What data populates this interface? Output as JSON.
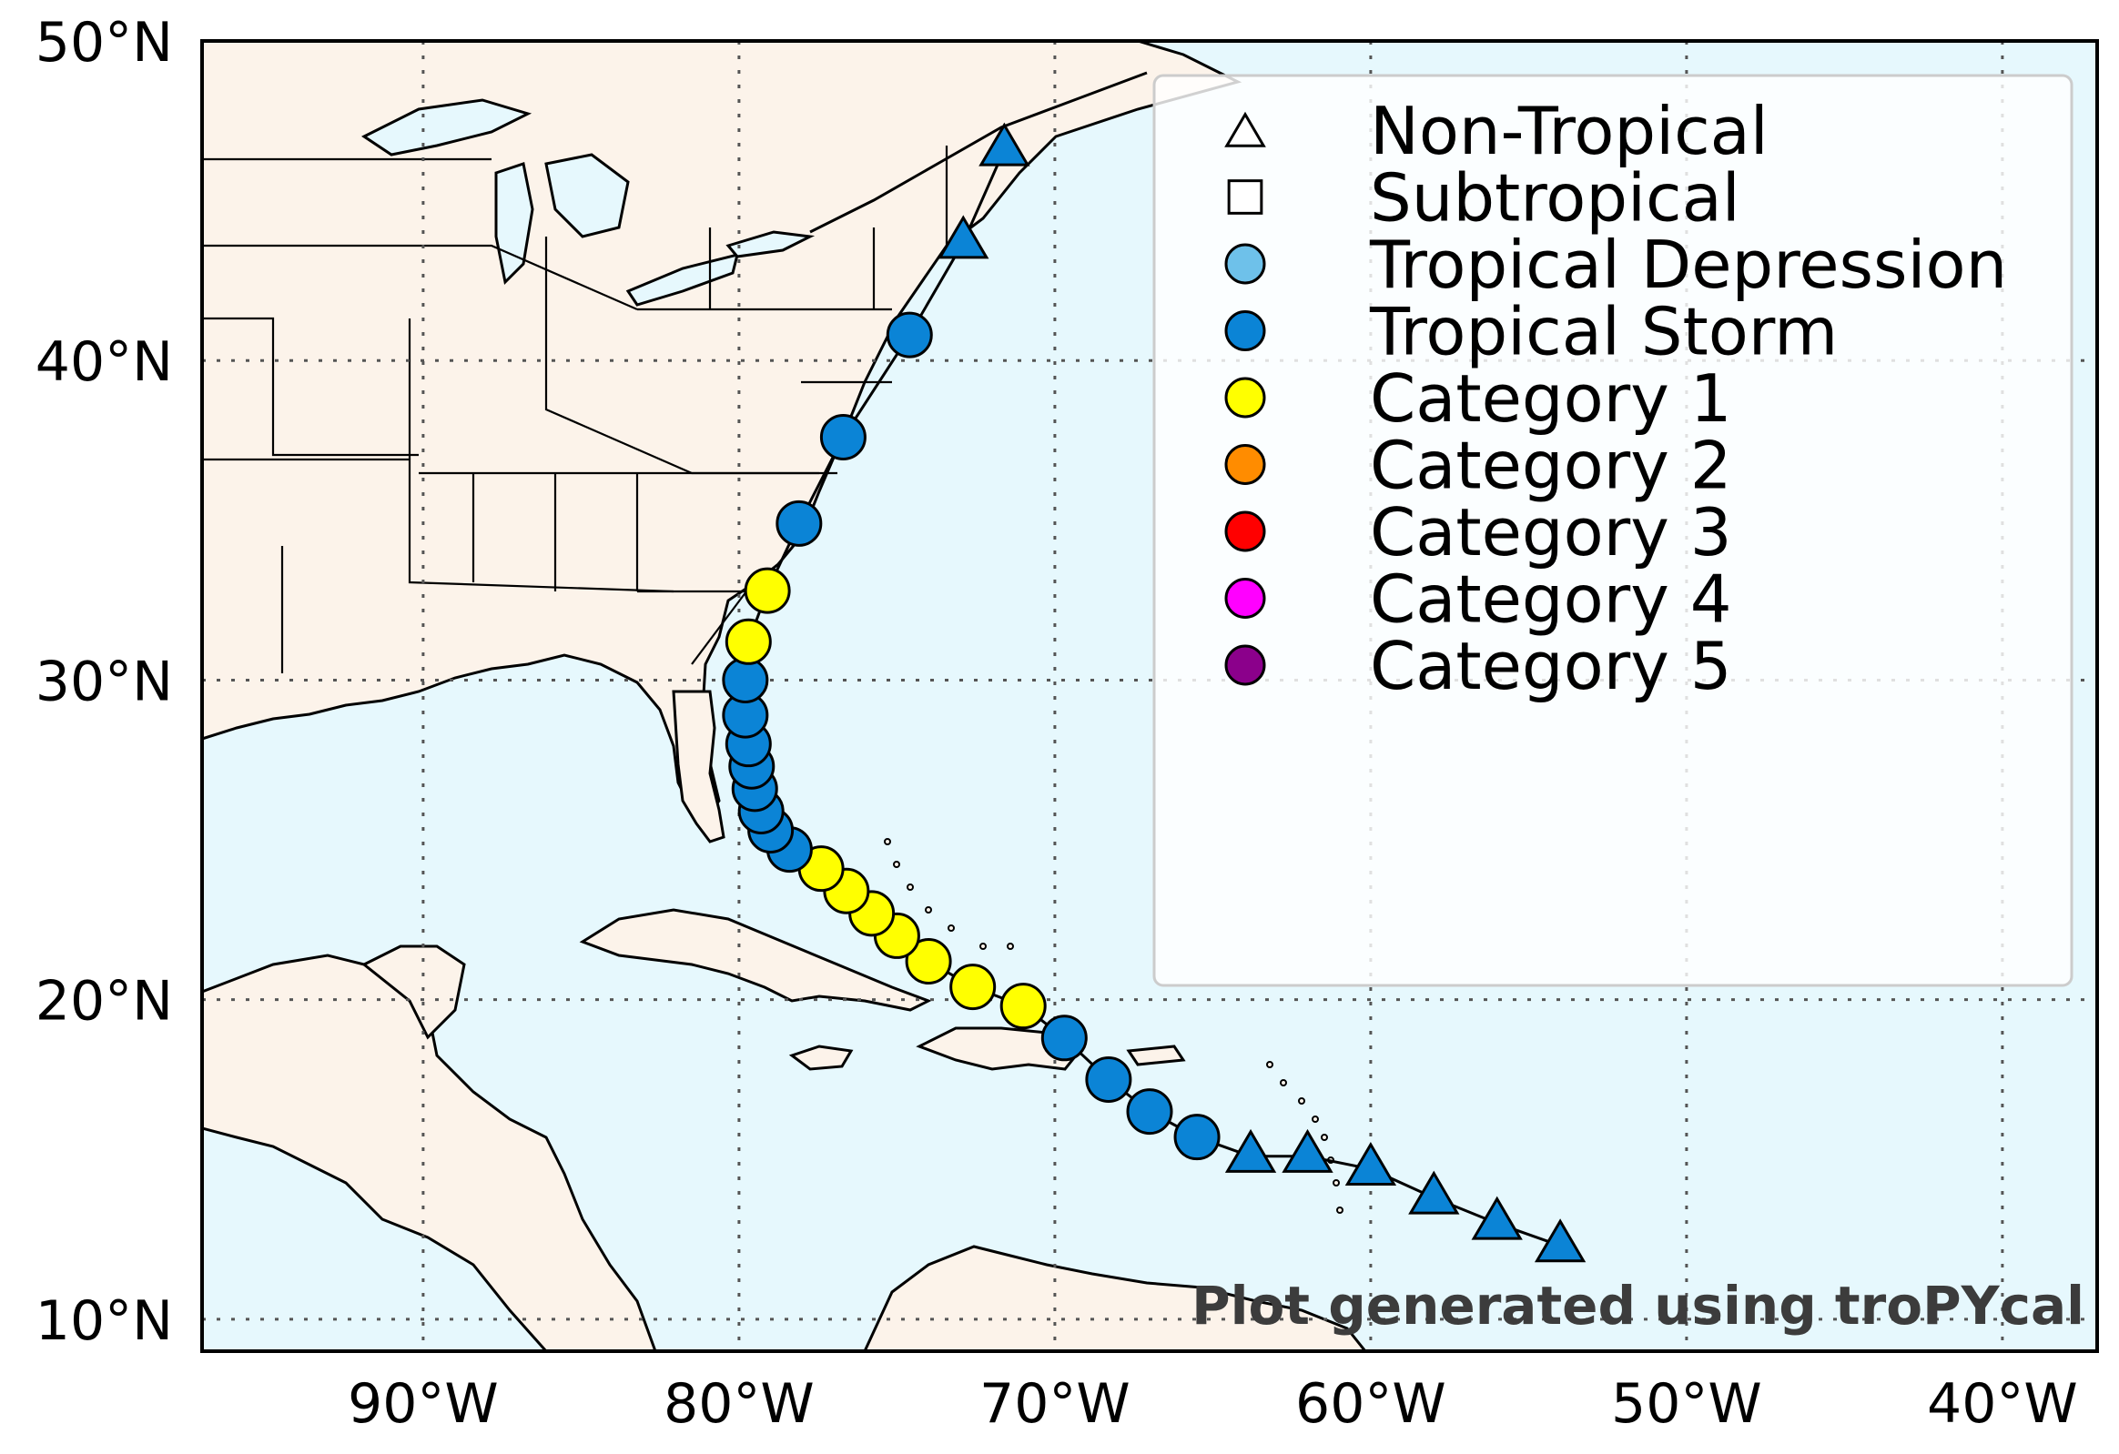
{
  "chart_data": {
    "type": "map-track",
    "lon_range": [
      -97,
      -37
    ],
    "lat_range": [
      9,
      50
    ],
    "x_ticks": [
      {
        "value": -90,
        "label": "90°W"
      },
      {
        "value": -80,
        "label": "80°W"
      },
      {
        "value": -70,
        "label": "70°W"
      },
      {
        "value": -60,
        "label": "60°W"
      },
      {
        "value": -50,
        "label": "50°W"
      },
      {
        "value": -40,
        "label": "40°W"
      }
    ],
    "y_ticks": [
      {
        "value": 10,
        "label": "10°N"
      },
      {
        "value": 20,
        "label": "20°N"
      },
      {
        "value": 30,
        "label": "30°N"
      },
      {
        "value": 40,
        "label": "40°N"
      },
      {
        "value": 50,
        "label": "50°N"
      }
    ],
    "grid": true,
    "legend_position": "top-right",
    "legend": [
      {
        "label": "Non-Tropical",
        "marker": "triangle",
        "fill": "#ffffff"
      },
      {
        "label": "Subtropical",
        "marker": "square",
        "fill": "#ffffff"
      },
      {
        "label": "Tropical Depression",
        "marker": "circle",
        "fill": "#6ec1ea"
      },
      {
        "label": "Tropical Storm",
        "marker": "circle",
        "fill": "#0b84d6"
      },
      {
        "label": "Category 1",
        "marker": "circle",
        "fill": "#ffff00"
      },
      {
        "label": "Category 2",
        "marker": "circle",
        "fill": "#ff8c00"
      },
      {
        "label": "Category 3",
        "marker": "circle",
        "fill": "#ff0000"
      },
      {
        "label": "Category 4",
        "marker": "circle",
        "fill": "#ff00ff"
      },
      {
        "label": "Category 5",
        "marker": "circle",
        "fill": "#8b008b"
      }
    ],
    "track": [
      {
        "lon": -54.0,
        "lat": 12.3,
        "category": "Non-Tropical"
      },
      {
        "lon": -56.0,
        "lat": 13.0,
        "category": "Non-Tropical"
      },
      {
        "lon": -58.0,
        "lat": 13.8,
        "category": "Non-Tropical"
      },
      {
        "lon": -60.0,
        "lat": 14.7,
        "category": "Non-Tropical"
      },
      {
        "lon": -62.0,
        "lat": 15.1,
        "category": "Non-Tropical"
      },
      {
        "lon": -63.8,
        "lat": 15.1,
        "category": "Non-Tropical"
      },
      {
        "lon": -65.5,
        "lat": 15.7,
        "category": "Tropical Storm"
      },
      {
        "lon": -67.0,
        "lat": 16.5,
        "category": "Tropical Storm"
      },
      {
        "lon": -68.3,
        "lat": 17.5,
        "category": "Tropical Storm"
      },
      {
        "lon": -69.7,
        "lat": 18.8,
        "category": "Tropical Storm"
      },
      {
        "lon": -71.0,
        "lat": 19.8,
        "category": "Category 1"
      },
      {
        "lon": -72.6,
        "lat": 20.4,
        "category": "Category 1"
      },
      {
        "lon": -74.0,
        "lat": 21.2,
        "category": "Category 1"
      },
      {
        "lon": -75.0,
        "lat": 22.0,
        "category": "Category 1"
      },
      {
        "lon": -75.8,
        "lat": 22.7,
        "category": "Category 1"
      },
      {
        "lon": -76.6,
        "lat": 23.4,
        "category": "Category 1"
      },
      {
        "lon": -77.4,
        "lat": 24.1,
        "category": "Category 1"
      },
      {
        "lon": -78.4,
        "lat": 24.7,
        "category": "Tropical Storm"
      },
      {
        "lon": -79.0,
        "lat": 25.3,
        "category": "Tropical Storm"
      },
      {
        "lon": -79.3,
        "lat": 25.9,
        "category": "Tropical Storm"
      },
      {
        "lon": -79.5,
        "lat": 26.6,
        "category": "Tropical Storm"
      },
      {
        "lon": -79.6,
        "lat": 27.3,
        "category": "Tropical Storm"
      },
      {
        "lon": -79.7,
        "lat": 28.0,
        "category": "Tropical Storm"
      },
      {
        "lon": -79.8,
        "lat": 28.9,
        "category": "Tropical Storm"
      },
      {
        "lon": -79.8,
        "lat": 30.0,
        "category": "Tropical Storm"
      },
      {
        "lon": -79.7,
        "lat": 31.2,
        "category": "Category 1"
      },
      {
        "lon": -79.1,
        "lat": 32.8,
        "category": "Category 1"
      },
      {
        "lon": -78.1,
        "lat": 34.9,
        "category": "Tropical Storm"
      },
      {
        "lon": -76.7,
        "lat": 37.6,
        "category": "Tropical Storm"
      },
      {
        "lon": -74.6,
        "lat": 40.8,
        "category": "Tropical Storm"
      },
      {
        "lon": -72.9,
        "lat": 43.7,
        "category": "Non-Tropical"
      },
      {
        "lon": -71.6,
        "lat": 46.6,
        "category": "Non-Tropical"
      }
    ]
  },
  "colors": {
    "ocean": "#e6f8fd",
    "land": "#fcf3ea",
    "lakes": "#e6f8fd",
    "track_line": "#000000",
    "marker_edge": "#000000"
  },
  "watermark": "Plot generated using troPYcal"
}
